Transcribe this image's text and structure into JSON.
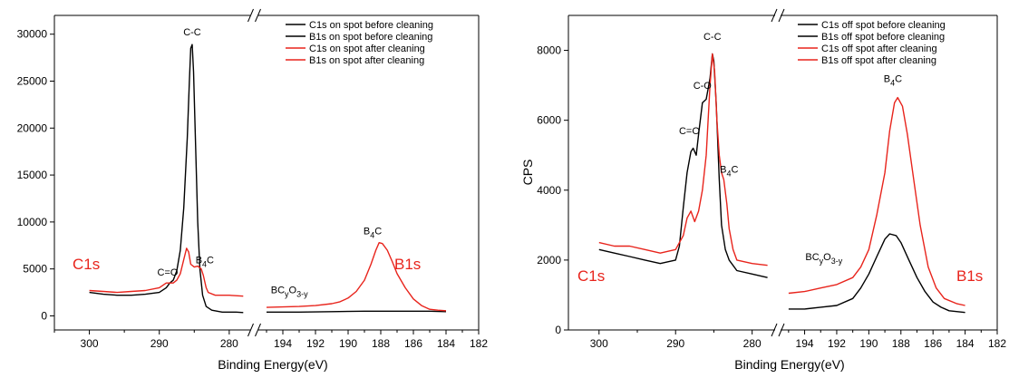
{
  "colors": {
    "black": "#000000",
    "red": "#e8241c"
  },
  "chart_data": [
    {
      "type": "line",
      "xlabel": "Binding Energy(eV)",
      "ylabel": "",
      "ylim": [
        -1500,
        32000
      ],
      "yticks": [
        0,
        5000,
        10000,
        15000,
        20000,
        25000,
        30000
      ],
      "ytick_labels": [
        "0",
        "5000",
        "10000",
        "15000",
        "20000",
        "25000",
        "30000"
      ],
      "segments": [
        {
          "xlim": [
            305,
            277
          ],
          "xticks": [
            300,
            290,
            280
          ],
          "xtick_labels": [
            "300",
            "290",
            "280"
          ]
        },
        {
          "xlim": [
            195.5,
            182
          ],
          "xticks": [
            194,
            192,
            190,
            188,
            186,
            184,
            182
          ],
          "xtick_labels": [
            "194",
            "192",
            "190",
            "188",
            "186",
            "184",
            "182"
          ]
        }
      ],
      "legend_position": "top-right",
      "series": [
        {
          "name": "C1s on spot before cleaning",
          "color": "#000000",
          "segment": 0,
          "points": [
            [
              300,
              2500
            ],
            [
              298,
              2300
            ],
            [
              296,
              2200
            ],
            [
              294,
              2200
            ],
            [
              292,
              2300
            ],
            [
              290,
              2500
            ],
            [
              289,
              3000
            ],
            [
              288.5,
              3500
            ],
            [
              288,
              3800
            ],
            [
              287.5,
              4800
            ],
            [
              287,
              7000
            ],
            [
              286.5,
              11500
            ],
            [
              286,
              19000
            ],
            [
              285.7,
              25000
            ],
            [
              285.5,
              28500
            ],
            [
              285.3,
              28900
            ],
            [
              285.1,
              26000
            ],
            [
              284.8,
              18000
            ],
            [
              284.5,
              10000
            ],
            [
              284.2,
              5000
            ],
            [
              283.8,
              2200
            ],
            [
              283.3,
              1000
            ],
            [
              282.5,
              600
            ],
            [
              281,
              400
            ],
            [
              279,
              400
            ],
            [
              278,
              350
            ]
          ]
        },
        {
          "name": "B1s on spot before cleaning",
          "color": "#000000",
          "segment": 1,
          "points": [
            [
              195,
              400
            ],
            [
              193,
              400
            ],
            [
              191,
              450
            ],
            [
              189,
              500
            ],
            [
              187,
              500
            ],
            [
              185,
              500
            ],
            [
              184,
              450
            ]
          ]
        },
        {
          "name": "C1s on spot after cleaning",
          "color": "#e8241c",
          "segment": 0,
          "points": [
            [
              300,
              2700
            ],
            [
              298,
              2600
            ],
            [
              296,
              2500
            ],
            [
              294,
              2600
            ],
            [
              292,
              2700
            ],
            [
              290,
              3000
            ],
            [
              289,
              3500
            ],
            [
              288,
              3500
            ],
            [
              287.5,
              3800
            ],
            [
              287,
              4500
            ],
            [
              286.5,
              6000
            ],
            [
              286.1,
              7200
            ],
            [
              285.8,
              6800
            ],
            [
              285.5,
              5500
            ],
            [
              285,
              5200
            ],
            [
              284.5,
              5300
            ],
            [
              284,
              5000
            ],
            [
              283.7,
              4300
            ],
            [
              283.3,
              3000
            ],
            [
              283,
              2500
            ],
            [
              282,
              2200
            ],
            [
              280,
              2200
            ],
            [
              278,
              2100
            ]
          ]
        },
        {
          "name": "B1s on spot after cleaning",
          "color": "#e8241c",
          "segment": 1,
          "points": [
            [
              195,
              900
            ],
            [
              194,
              950
            ],
            [
              193,
              1000
            ],
            [
              192,
              1100
            ],
            [
              191,
              1300
            ],
            [
              190.5,
              1500
            ],
            [
              190,
              1900
            ],
            [
              189.5,
              2600
            ],
            [
              189,
              3800
            ],
            [
              188.6,
              5500
            ],
            [
              188.3,
              7000
            ],
            [
              188.1,
              7800
            ],
            [
              187.9,
              7700
            ],
            [
              187.6,
              7000
            ],
            [
              187.3,
              5800
            ],
            [
              187,
              4500
            ],
            [
              186.5,
              3000
            ],
            [
              186,
              1800
            ],
            [
              185.5,
              1100
            ],
            [
              185,
              700
            ],
            [
              184.5,
              600
            ],
            [
              184,
              550
            ]
          ]
        }
      ],
      "annotations": [
        {
          "text": "C-C",
          "x": 285.3,
          "y": 29900,
          "segment": 0,
          "color": "#000000"
        },
        {
          "text": "C=O",
          "x": 288.8,
          "y": 4300,
          "segment": 0,
          "color": "#000000"
        },
        {
          "text": "B",
          "sub": "4",
          "tail": "C",
          "x": 283.5,
          "y": 5600,
          "segment": 0,
          "color": "#000000"
        },
        {
          "text": "BC",
          "sub": "y",
          "tail": "O",
          "sub2": "3-y",
          "x": 193.6,
          "y": 2400,
          "segment": 1,
          "color": "#000000"
        },
        {
          "text": "B",
          "sub": "4",
          "tail": "C",
          "x": 188.5,
          "y": 8700,
          "segment": 1,
          "color": "#000000"
        }
      ],
      "region_labels": [
        {
          "text": "C1s",
          "color": "#e8241c",
          "side": "left"
        },
        {
          "text": "B1s",
          "color": "#e8241c",
          "side": "right"
        }
      ]
    },
    {
      "type": "line",
      "xlabel": "Binding Energy(eV)",
      "ylabel": "CPS",
      "ylim": [
        0,
        9000
      ],
      "yticks": [
        0,
        2000,
        4000,
        6000,
        8000
      ],
      "ytick_labels": [
        "0",
        "2000",
        "4000",
        "6000",
        "8000"
      ],
      "segments": [
        {
          "xlim": [
            304,
            277
          ],
          "xticks": [
            300,
            290,
            280
          ],
          "xtick_labels": [
            "300",
            "290",
            "280"
          ]
        },
        {
          "xlim": [
            195.5,
            182
          ],
          "xticks": [
            194,
            192,
            190,
            188,
            186,
            184,
            182
          ],
          "xtick_labels": [
            "194",
            "192",
            "190",
            "188",
            "186",
            "184",
            "182"
          ]
        }
      ],
      "legend_position": "top-right",
      "series": [
        {
          "name": "C1s off spot before cleaning",
          "color": "#000000",
          "segment": 0,
          "points": [
            [
              300,
              2300
            ],
            [
              298,
              2200
            ],
            [
              296,
              2100
            ],
            [
              294,
              2000
            ],
            [
              292,
              1900
            ],
            [
              290,
              2000
            ],
            [
              289.5,
              2400
            ],
            [
              289,
              3500
            ],
            [
              288.5,
              4500
            ],
            [
              288,
              5100
            ],
            [
              287.7,
              5200
            ],
            [
              287.3,
              5000
            ],
            [
              287,
              5600
            ],
            [
              286.5,
              6500
            ],
            [
              286,
              6600
            ],
            [
              285.5,
              7200
            ],
            [
              285.2,
              7900
            ],
            [
              285,
              7700
            ],
            [
              284.7,
              6500
            ],
            [
              284.3,
              4300
            ],
            [
              284,
              3000
            ],
            [
              283.5,
              2300
            ],
            [
              283,
              2000
            ],
            [
              282,
              1700
            ],
            [
              280,
              1600
            ],
            [
              278,
              1500
            ]
          ]
        },
        {
          "name": "B1s off spot before cleaning",
          "color": "#000000",
          "segment": 1,
          "points": [
            [
              195,
              600
            ],
            [
              194,
              600
            ],
            [
              193,
              650
            ],
            [
              192,
              700
            ],
            [
              191,
              900
            ],
            [
              190.5,
              1200
            ],
            [
              190,
              1600
            ],
            [
              189.5,
              2100
            ],
            [
              189,
              2600
            ],
            [
              188.7,
              2750
            ],
            [
              188.3,
              2700
            ],
            [
              188,
              2500
            ],
            [
              187.5,
              2000
            ],
            [
              187,
              1500
            ],
            [
              186.5,
              1100
            ],
            [
              186,
              800
            ],
            [
              185.5,
              650
            ],
            [
              185,
              550
            ],
            [
              184,
              500
            ]
          ]
        },
        {
          "name": "C1s off spot after cleaning",
          "color": "#e8241c",
          "segment": 0,
          "points": [
            [
              300,
              2500
            ],
            [
              298,
              2400
            ],
            [
              296,
              2400
            ],
            [
              294,
              2300
            ],
            [
              292,
              2200
            ],
            [
              290,
              2300
            ],
            [
              289,
              2700
            ],
            [
              288.5,
              3200
            ],
            [
              288,
              3400
            ],
            [
              287.5,
              3100
            ],
            [
              287,
              3400
            ],
            [
              286.5,
              4000
            ],
            [
              286,
              5000
            ],
            [
              285.5,
              7000
            ],
            [
              285.2,
              7900
            ],
            [
              284.9,
              7400
            ],
            [
              284.6,
              6000
            ],
            [
              284.3,
              5000
            ],
            [
              284,
              4500
            ],
            [
              283.7,
              4300
            ],
            [
              283.3,
              3600
            ],
            [
              283,
              2900
            ],
            [
              282.5,
              2300
            ],
            [
              282,
              2000
            ],
            [
              280,
              1900
            ],
            [
              278,
              1850
            ]
          ]
        },
        {
          "name": "B1s off spot after cleaning",
          "color": "#e8241c",
          "segment": 1,
          "points": [
            [
              195,
              1050
            ],
            [
              194,
              1100
            ],
            [
              193,
              1200
            ],
            [
              192,
              1300
            ],
            [
              191,
              1500
            ],
            [
              190.5,
              1800
            ],
            [
              190,
              2300
            ],
            [
              189.5,
              3300
            ],
            [
              189,
              4500
            ],
            [
              188.7,
              5700
            ],
            [
              188.4,
              6500
            ],
            [
              188.2,
              6650
            ],
            [
              187.9,
              6400
            ],
            [
              187.6,
              5600
            ],
            [
              187.2,
              4300
            ],
            [
              186.8,
              3000
            ],
            [
              186.3,
              1800
            ],
            [
              185.8,
              1200
            ],
            [
              185.3,
              900
            ],
            [
              184.5,
              750
            ],
            [
              184,
              700
            ]
          ]
        }
      ],
      "annotations": [
        {
          "text": "C-C",
          "x": 285.2,
          "y": 8300,
          "segment": 0,
          "color": "#000000"
        },
        {
          "text": "C-O",
          "x": 286.5,
          "y": 6900,
          "segment": 0,
          "color": "#000000"
        },
        {
          "text": "C=O",
          "x": 288.2,
          "y": 5600,
          "segment": 0,
          "color": "#000000"
        },
        {
          "text": "B",
          "sub": "4",
          "tail": "C",
          "x": 283.0,
          "y": 4500,
          "segment": 0,
          "color": "#000000"
        },
        {
          "text": "BC",
          "sub": "y",
          "tail": "O",
          "sub2": "3-y",
          "x": 192.8,
          "y": 2000,
          "segment": 1,
          "color": "#000000"
        },
        {
          "text": "B",
          "sub": "4",
          "tail": "C",
          "x": 188.5,
          "y": 7100,
          "segment": 1,
          "color": "#000000"
        }
      ],
      "region_labels": [
        {
          "text": "C1s",
          "color": "#e8241c",
          "side": "left"
        },
        {
          "text": "B1s",
          "color": "#e8241c",
          "side": "right"
        }
      ]
    }
  ]
}
